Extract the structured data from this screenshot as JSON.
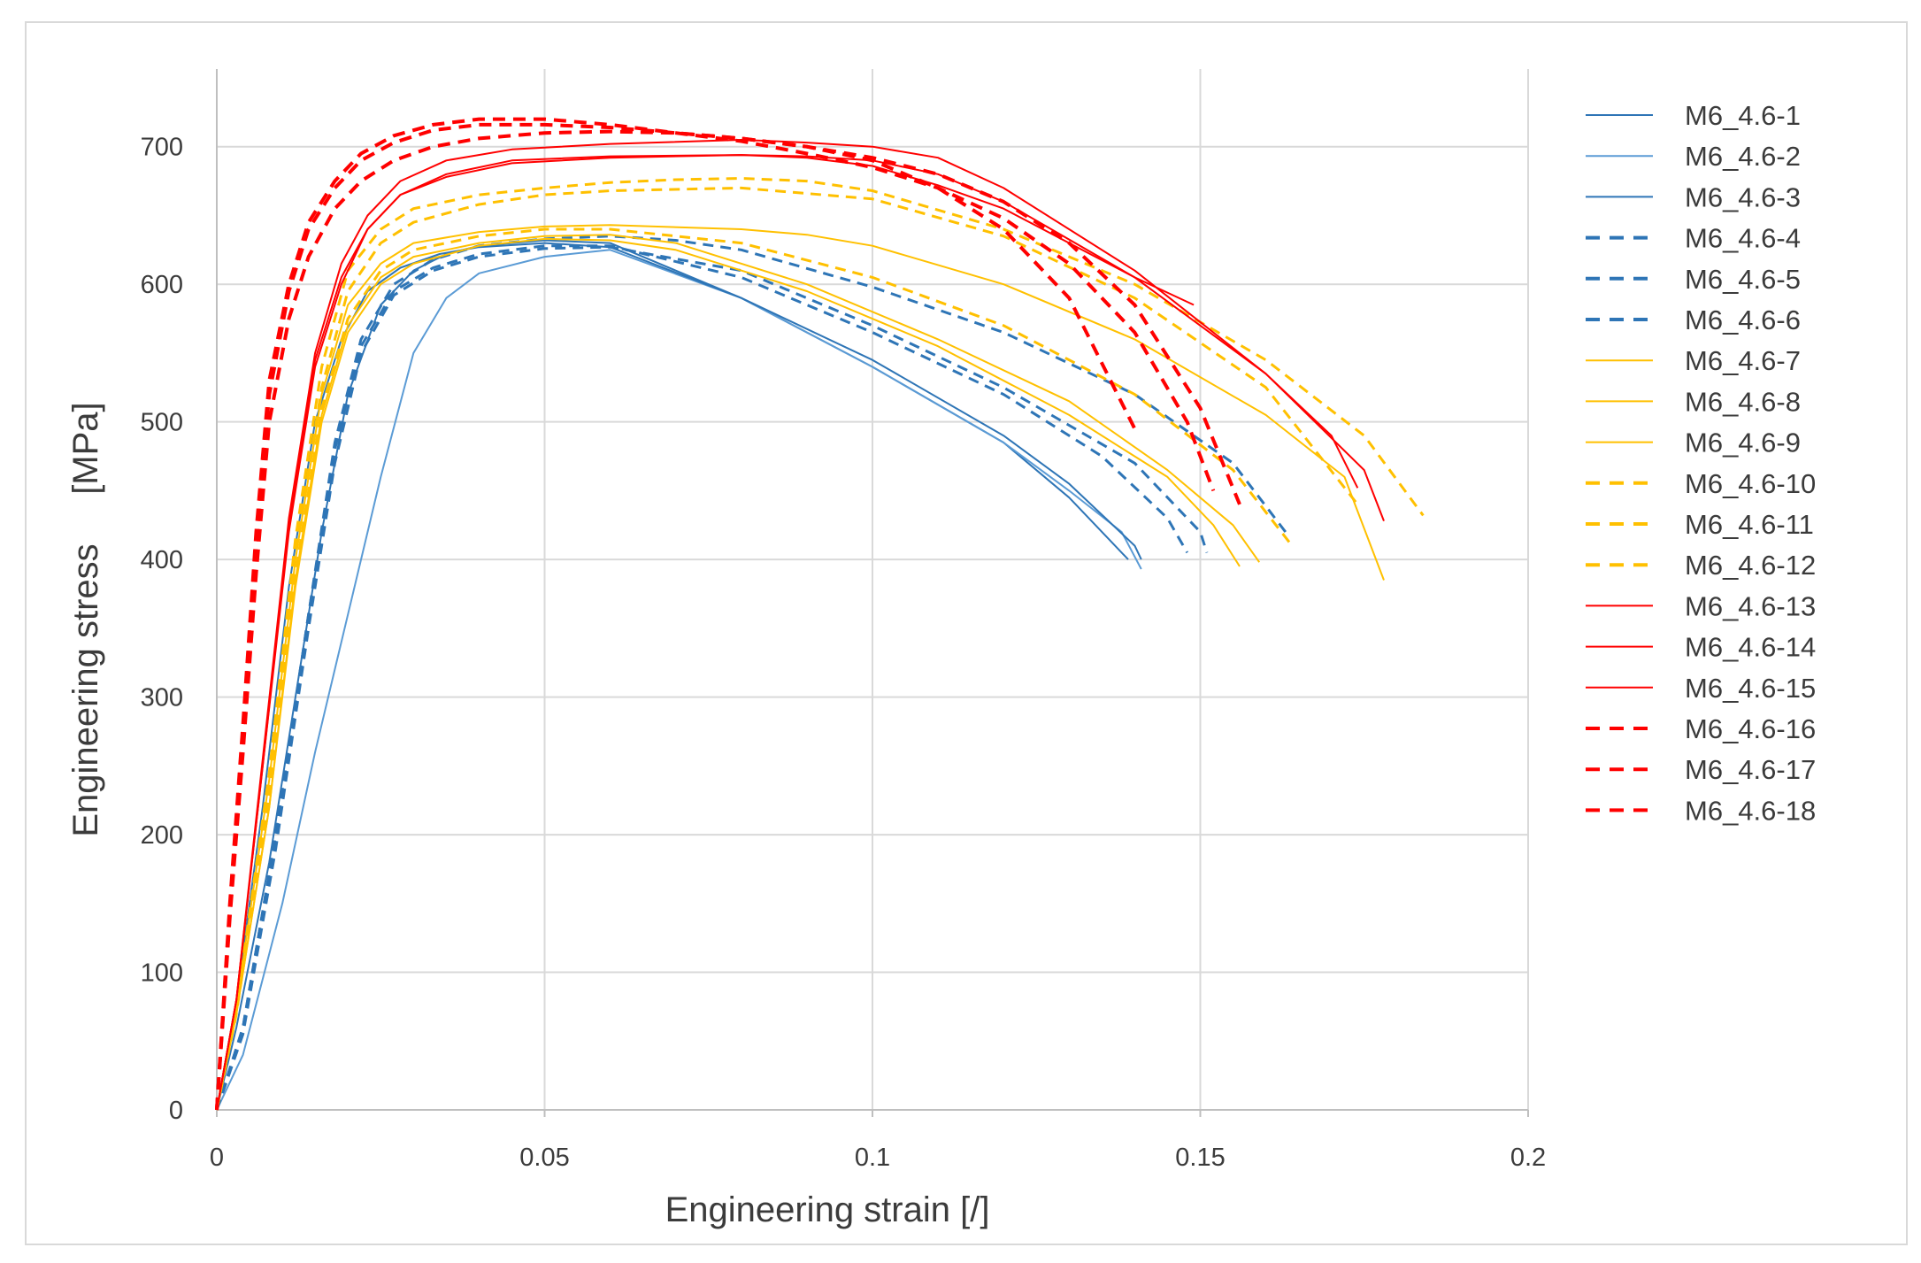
{
  "chart_data": {
    "type": "line",
    "title": "",
    "xlabel": "Engineering strain  [/]",
    "ylabel": "Engineering stress     [MPa]",
    "xlim": [
      0,
      0.2
    ],
    "ylim": [
      0,
      750
    ],
    "xticks": [
      0,
      0.05,
      0.1,
      0.15,
      0.2
    ],
    "xtick_labels": [
      "0",
      "0.05",
      "0.1",
      "0.15",
      "0.2"
    ],
    "yticks": [
      0,
      100,
      200,
      300,
      400,
      500,
      600,
      700
    ],
    "ytick_labels": [
      "0",
      "100",
      "200",
      "300",
      "400",
      "500",
      "600",
      "700"
    ],
    "grid": true,
    "legend_position": "right",
    "colors": {
      "blue": "#2e75b6",
      "light_blue": "#5b9bd5",
      "orange": "#ffc000",
      "red": "#ff0000",
      "grid": "#d9d9d9",
      "axis": "#bfbfbf"
    },
    "series": [
      {
        "name": "M6_4.6-1",
        "color": "#2e75b6",
        "style": "solid",
        "width": 2,
        "x": [
          0,
          0.003,
          0.008,
          0.012,
          0.016,
          0.02,
          0.025,
          0.03,
          0.035,
          0.04,
          0.05,
          0.06,
          0.08,
          0.1,
          0.12,
          0.13,
          0.136,
          0.139
        ],
        "y": [
          0,
          60,
          180,
          300,
          420,
          520,
          585,
          610,
          622,
          628,
          632,
          630,
          590,
          540,
          485,
          445,
          415,
          400
        ]
      },
      {
        "name": "M6_4.6-2",
        "color": "#5b9bd5",
        "style": "solid",
        "width": 2,
        "x": [
          0,
          0.004,
          0.01,
          0.015,
          0.02,
          0.025,
          0.03,
          0.035,
          0.04,
          0.05,
          0.06,
          0.08,
          0.1,
          0.12,
          0.13,
          0.138,
          0.141
        ],
        "y": [
          0,
          40,
          150,
          260,
          360,
          460,
          550,
          590,
          608,
          620,
          625,
          590,
          540,
          485,
          450,
          420,
          393
        ]
      },
      {
        "name": "M6_4.6-3",
        "color": "#2e75b6",
        "style": "solid",
        "width": 2,
        "x": [
          0,
          0.003,
          0.007,
          0.011,
          0.015,
          0.019,
          0.023,
          0.028,
          0.034,
          0.04,
          0.05,
          0.06,
          0.08,
          0.1,
          0.12,
          0.13,
          0.14,
          0.141
        ],
        "y": [
          0,
          80,
          220,
          380,
          500,
          560,
          595,
          612,
          622,
          627,
          630,
          627,
          590,
          545,
          490,
          455,
          410,
          400
        ]
      },
      {
        "name": "M6_4.6-4",
        "color": "#2e75b6",
        "style": "dashed",
        "width": 3,
        "x": [
          0,
          0.004,
          0.009,
          0.014,
          0.018,
          0.022,
          0.027,
          0.033,
          0.04,
          0.05,
          0.06,
          0.08,
          0.1,
          0.12,
          0.135,
          0.145,
          0.148
        ],
        "y": [
          0,
          60,
          200,
          360,
          480,
          555,
          595,
          612,
          622,
          628,
          628,
          605,
          565,
          520,
          475,
          430,
          405
        ]
      },
      {
        "name": "M6_4.6-5",
        "color": "#2e75b6",
        "style": "dashed",
        "width": 3,
        "x": [
          0,
          0.004,
          0.009,
          0.014,
          0.018,
          0.022,
          0.027,
          0.033,
          0.04,
          0.05,
          0.06,
          0.08,
          0.1,
          0.12,
          0.14,
          0.15,
          0.151
        ],
        "y": [
          0,
          55,
          190,
          350,
          470,
          550,
          592,
          610,
          620,
          626,
          627,
          610,
          570,
          525,
          470,
          420,
          405
        ]
      },
      {
        "name": "M6_4.6-6",
        "color": "#2e75b6",
        "style": "dashed",
        "width": 3,
        "x": [
          0,
          0.004,
          0.009,
          0.014,
          0.018,
          0.022,
          0.027,
          0.033,
          0.04,
          0.05,
          0.06,
          0.07,
          0.08,
          0.1,
          0.12,
          0.14,
          0.155,
          0.163
        ],
        "y": [
          0,
          60,
          200,
          360,
          485,
          560,
          600,
          618,
          628,
          633,
          635,
          632,
          625,
          598,
          565,
          520,
          470,
          420
        ]
      },
      {
        "name": "M6_4.6-7",
        "color": "#ffc000",
        "style": "solid",
        "width": 2,
        "x": [
          0,
          0.003,
          0.008,
          0.012,
          0.016,
          0.02,
          0.025,
          0.03,
          0.04,
          0.05,
          0.06,
          0.07,
          0.09,
          0.11,
          0.13,
          0.145,
          0.152,
          0.156
        ],
        "y": [
          0,
          70,
          220,
          380,
          500,
          565,
          600,
          615,
          628,
          633,
          632,
          625,
          595,
          555,
          505,
          460,
          425,
          395
        ]
      },
      {
        "name": "M6_4.6-8",
        "color": "#ffc000",
        "style": "solid",
        "width": 2,
        "x": [
          0,
          0.003,
          0.008,
          0.012,
          0.016,
          0.02,
          0.025,
          0.03,
          0.04,
          0.05,
          0.06,
          0.07,
          0.09,
          0.11,
          0.13,
          0.145,
          0.155,
          0.159
        ],
        "y": [
          0,
          70,
          220,
          385,
          505,
          570,
          605,
          620,
          630,
          635,
          636,
          630,
          600,
          560,
          515,
          465,
          425,
          398
        ]
      },
      {
        "name": "M6_4.6-9",
        "color": "#ffc000",
        "style": "solid",
        "width": 2,
        "x": [
          0,
          0.003,
          0.008,
          0.012,
          0.016,
          0.02,
          0.025,
          0.03,
          0.04,
          0.05,
          0.06,
          0.08,
          0.09,
          0.1,
          0.12,
          0.14,
          0.16,
          0.172,
          0.178
        ],
        "y": [
          0,
          75,
          240,
          400,
          520,
          585,
          615,
          630,
          638,
          642,
          643,
          640,
          636,
          628,
          600,
          560,
          505,
          460,
          385
        ]
      },
      {
        "name": "M6_4.6-10",
        "color": "#ffc000",
        "style": "dashed",
        "width": 3,
        "x": [
          0,
          0.003,
          0.008,
          0.012,
          0.016,
          0.02,
          0.025,
          0.03,
          0.04,
          0.05,
          0.06,
          0.08,
          0.1,
          0.12,
          0.14,
          0.155,
          0.164
        ],
        "y": [
          0,
          70,
          230,
          390,
          510,
          575,
          610,
          625,
          635,
          640,
          640,
          630,
          605,
          570,
          520,
          465,
          410
        ]
      },
      {
        "name": "M6_4.6-11",
        "color": "#ffc000",
        "style": "dashed",
        "width": 3,
        "x": [
          0,
          0.003,
          0.008,
          0.012,
          0.016,
          0.02,
          0.025,
          0.03,
          0.04,
          0.05,
          0.06,
          0.08,
          0.1,
          0.12,
          0.14,
          0.16,
          0.174
        ],
        "y": [
          0,
          75,
          240,
          405,
          525,
          595,
          630,
          645,
          658,
          665,
          668,
          670,
          662,
          635,
          590,
          525,
          440
        ]
      },
      {
        "name": "M6_4.6-12",
        "color": "#ffc000",
        "style": "dashed",
        "width": 3,
        "x": [
          0,
          0.003,
          0.008,
          0.012,
          0.016,
          0.02,
          0.025,
          0.03,
          0.04,
          0.05,
          0.06,
          0.07,
          0.08,
          0.09,
          0.1,
          0.12,
          0.14,
          0.16,
          0.175,
          0.184
        ],
        "y": [
          0,
          75,
          245,
          415,
          540,
          610,
          640,
          655,
          665,
          670,
          674,
          676,
          677,
          675,
          668,
          640,
          600,
          545,
          490,
          432
        ]
      },
      {
        "name": "M6_4.6-13",
        "color": "#ff0000",
        "style": "solid",
        "width": 2,
        "x": [
          0,
          0.003,
          0.007,
          0.011,
          0.015,
          0.019,
          0.023,
          0.028,
          0.035,
          0.045,
          0.06,
          0.08,
          0.09,
          0.1,
          0.11,
          0.12,
          0.13,
          0.14,
          0.149
        ],
        "y": [
          0,
          80,
          250,
          420,
          540,
          600,
          640,
          665,
          680,
          690,
          693,
          694,
          692,
          686,
          672,
          655,
          630,
          605,
          585
        ]
      },
      {
        "name": "M6_4.6-14",
        "color": "#ff0000",
        "style": "solid",
        "width": 2,
        "x": [
          0,
          0.003,
          0.007,
          0.011,
          0.015,
          0.019,
          0.023,
          0.028,
          0.035,
          0.045,
          0.06,
          0.08,
          0.09,
          0.1,
          0.11,
          0.12,
          0.14,
          0.16,
          0.17,
          0.174
        ],
        "y": [
          0,
          80,
          255,
          430,
          550,
          615,
          650,
          675,
          690,
          698,
          702,
          705,
          703,
          700,
          692,
          670,
          610,
          535,
          490,
          452
        ]
      },
      {
        "name": "M6_4.6-15",
        "color": "#ff0000",
        "style": "solid",
        "width": 2,
        "x": [
          0,
          0.003,
          0.007,
          0.011,
          0.015,
          0.019,
          0.023,
          0.028,
          0.035,
          0.045,
          0.06,
          0.08,
          0.09,
          0.1,
          0.11,
          0.12,
          0.14,
          0.16,
          0.175,
          0.178
        ],
        "y": [
          0,
          80,
          250,
          425,
          545,
          605,
          640,
          665,
          678,
          688,
          692,
          694,
          693,
          690,
          680,
          660,
          605,
          535,
          465,
          428
        ]
      },
      {
        "name": "M6_4.6-16",
        "color": "#ff0000",
        "style": "dashed",
        "width": 4,
        "x": [
          0,
          0.002,
          0.004,
          0.006,
          0.008,
          0.011,
          0.014,
          0.018,
          0.022,
          0.027,
          0.033,
          0.04,
          0.05,
          0.06,
          0.07,
          0.08,
          0.09,
          0.1,
          0.11,
          0.12,
          0.13,
          0.14,
          0.148,
          0.152
        ],
        "y": [
          0,
          150,
          280,
          420,
          530,
          600,
          645,
          675,
          695,
          708,
          716,
          720,
          720,
          716,
          710,
          704,
          695,
          685,
          670,
          648,
          615,
          565,
          500,
          450
        ]
      },
      {
        "name": "M6_4.6-17",
        "color": "#ff0000",
        "style": "dashed",
        "width": 4,
        "x": [
          0,
          0.002,
          0.004,
          0.006,
          0.008,
          0.011,
          0.014,
          0.018,
          0.022,
          0.027,
          0.033,
          0.04,
          0.05,
          0.06,
          0.07,
          0.08,
          0.09,
          0.1,
          0.11,
          0.12,
          0.13,
          0.14
        ],
        "y": [
          0,
          140,
          260,
          390,
          500,
          575,
          620,
          655,
          675,
          690,
          700,
          706,
          710,
          711,
          710,
          706,
          700,
          690,
          670,
          640,
          590,
          495
        ]
      },
      {
        "name": "M6_4.6-18",
        "color": "#ff0000",
        "style": "dashed",
        "width": 4,
        "x": [
          0,
          0.002,
          0.004,
          0.006,
          0.008,
          0.011,
          0.014,
          0.018,
          0.022,
          0.027,
          0.033,
          0.04,
          0.05,
          0.06,
          0.07,
          0.08,
          0.09,
          0.1,
          0.11,
          0.12,
          0.13,
          0.14,
          0.15,
          0.156
        ],
        "y": [
          0,
          145,
          275,
          410,
          520,
          595,
          640,
          670,
          690,
          703,
          712,
          716,
          716,
          714,
          710,
          706,
          700,
          692,
          680,
          660,
          630,
          585,
          510,
          440
        ]
      }
    ]
  }
}
